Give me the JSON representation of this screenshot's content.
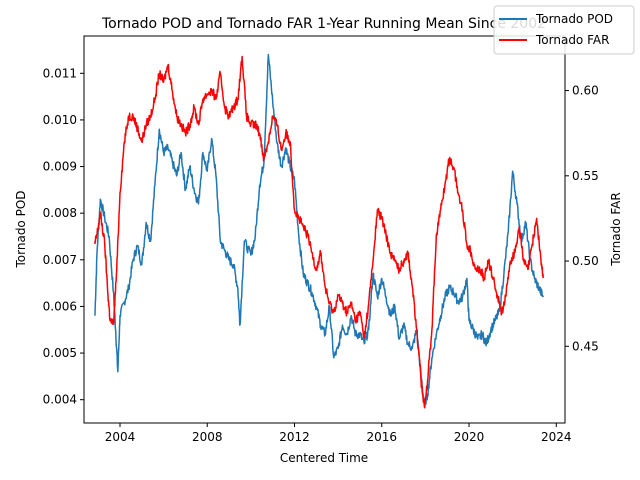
{
  "chart_data": {
    "type": "line",
    "title": "Tornado POD and Tornado FAR 1-Year Running Mean Since 2002",
    "xlabel": "Centered Time",
    "ylabel_left": "Tornado POD",
    "ylabel_right": "Tornado FAR",
    "xlim": [
      2002.35,
      2024.4
    ],
    "ylim_left": [
      0.0035,
      0.0118
    ],
    "ylim_right": [
      0.405,
      0.632
    ],
    "x_ticks": [
      2004,
      2008,
      2012,
      2016,
      2020,
      2024
    ],
    "y_ticks_left": [
      0.004,
      0.005,
      0.006,
      0.007,
      0.008,
      0.009,
      0.01,
      0.011
    ],
    "y_ticks_right": [
      0.45,
      0.5,
      0.55,
      0.6
    ],
    "legend_position": "top-right",
    "grid": false,
    "series": [
      {
        "name": "Tornado POD",
        "axis": "left",
        "color": "#1f77b4",
        "points": [
          [
            2002.85,
            0.0058
          ],
          [
            2002.95,
            0.0072
          ],
          [
            2003.1,
            0.0083
          ],
          [
            2003.3,
            0.0079
          ],
          [
            2003.5,
            0.0075
          ],
          [
            2003.7,
            0.0063
          ],
          [
            2003.8,
            0.0055
          ],
          [
            2003.9,
            0.0046
          ],
          [
            2004.0,
            0.0058
          ],
          [
            2004.2,
            0.0061
          ],
          [
            2004.4,
            0.0064
          ],
          [
            2004.6,
            0.007
          ],
          [
            2004.8,
            0.0073
          ],
          [
            2005.0,
            0.0069
          ],
          [
            2005.2,
            0.0078
          ],
          [
            2005.4,
            0.0074
          ],
          [
            2005.6,
            0.0086
          ],
          [
            2005.8,
            0.0098
          ],
          [
            2006.0,
            0.0093
          ],
          [
            2006.2,
            0.0094
          ],
          [
            2006.4,
            0.0091
          ],
          [
            2006.6,
            0.0088
          ],
          [
            2006.8,
            0.0093
          ],
          [
            2007.0,
            0.0085
          ],
          [
            2007.2,
            0.009
          ],
          [
            2007.4,
            0.0085
          ],
          [
            2007.6,
            0.0082
          ],
          [
            2007.8,
            0.0093
          ],
          [
            2008.0,
            0.0089
          ],
          [
            2008.2,
            0.0096
          ],
          [
            2008.4,
            0.0088
          ],
          [
            2008.6,
            0.0074
          ],
          [
            2008.8,
            0.0072
          ],
          [
            2009.0,
            0.007
          ],
          [
            2009.2,
            0.0069
          ],
          [
            2009.4,
            0.0064
          ],
          [
            2009.5,
            0.0056
          ],
          [
            2009.7,
            0.0074
          ],
          [
            2010.0,
            0.0071
          ],
          [
            2010.2,
            0.0075
          ],
          [
            2010.4,
            0.0086
          ],
          [
            2010.6,
            0.0091
          ],
          [
            2010.8,
            0.0114
          ],
          [
            2011.0,
            0.0104
          ],
          [
            2011.2,
            0.0095
          ],
          [
            2011.4,
            0.009
          ],
          [
            2011.6,
            0.0094
          ],
          [
            2011.8,
            0.009
          ],
          [
            2012.0,
            0.0087
          ],
          [
            2012.2,
            0.0075
          ],
          [
            2012.4,
            0.0067
          ],
          [
            2012.6,
            0.0065
          ],
          [
            2012.8,
            0.0063
          ],
          [
            2013.0,
            0.006
          ],
          [
            2013.2,
            0.0056
          ],
          [
            2013.4,
            0.0054
          ],
          [
            2013.6,
            0.006
          ],
          [
            2013.8,
            0.0049
          ],
          [
            2014.0,
            0.0051
          ],
          [
            2014.2,
            0.0056
          ],
          [
            2014.4,
            0.0054
          ],
          [
            2014.6,
            0.0058
          ],
          [
            2014.8,
            0.0054
          ],
          [
            2015.0,
            0.0054
          ],
          [
            2015.2,
            0.0052
          ],
          [
            2015.4,
            0.0055
          ],
          [
            2015.6,
            0.0067
          ],
          [
            2015.8,
            0.0062
          ],
          [
            2016.0,
            0.0066
          ],
          [
            2016.2,
            0.0062
          ],
          [
            2016.4,
            0.0058
          ],
          [
            2016.6,
            0.006
          ],
          [
            2016.8,
            0.0053
          ],
          [
            2017.0,
            0.0056
          ],
          [
            2017.2,
            0.0052
          ],
          [
            2017.4,
            0.0051
          ],
          [
            2017.6,
            0.0055
          ],
          [
            2017.8,
            0.0045
          ],
          [
            2017.95,
            0.0039
          ],
          [
            2018.1,
            0.0041
          ],
          [
            2018.3,
            0.0049
          ],
          [
            2018.5,
            0.0054
          ],
          [
            2018.7,
            0.0058
          ],
          [
            2018.9,
            0.0062
          ],
          [
            2019.1,
            0.0064
          ],
          [
            2019.3,
            0.0063
          ],
          [
            2019.5,
            0.0061
          ],
          [
            2019.7,
            0.0062
          ],
          [
            2019.9,
            0.0066
          ],
          [
            2020.0,
            0.0057
          ],
          [
            2020.2,
            0.0055
          ],
          [
            2020.4,
            0.0053
          ],
          [
            2020.6,
            0.0054
          ],
          [
            2020.8,
            0.0052
          ],
          [
            2021.0,
            0.0055
          ],
          [
            2021.2,
            0.0057
          ],
          [
            2021.4,
            0.0059
          ],
          [
            2021.6,
            0.0067
          ],
          [
            2021.8,
            0.0076
          ],
          [
            2022.0,
            0.0089
          ],
          [
            2022.2,
            0.0082
          ],
          [
            2022.4,
            0.0074
          ],
          [
            2022.6,
            0.0078
          ],
          [
            2022.8,
            0.007
          ],
          [
            2023.0,
            0.0066
          ],
          [
            2023.2,
            0.0064
          ],
          [
            2023.4,
            0.0062
          ]
        ]
      },
      {
        "name": "Tornado FAR",
        "axis": "right",
        "color": "#ff0000",
        "points": [
          [
            2002.85,
            0.51
          ],
          [
            2002.95,
            0.516
          ],
          [
            2003.1,
            0.528
          ],
          [
            2003.3,
            0.51
          ],
          [
            2003.45,
            0.48
          ],
          [
            2003.55,
            0.465
          ],
          [
            2003.7,
            0.463
          ],
          [
            2003.85,
            0.495
          ],
          [
            2004.0,
            0.54
          ],
          [
            2004.2,
            0.57
          ],
          [
            2004.4,
            0.585
          ],
          [
            2004.6,
            0.585
          ],
          [
            2004.8,
            0.578
          ],
          [
            2005.0,
            0.57
          ],
          [
            2005.2,
            0.58
          ],
          [
            2005.4,
            0.585
          ],
          [
            2005.6,
            0.595
          ],
          [
            2005.8,
            0.61
          ],
          [
            2006.0,
            0.605
          ],
          [
            2006.2,
            0.615
          ],
          [
            2006.4,
            0.6
          ],
          [
            2006.6,
            0.585
          ],
          [
            2006.8,
            0.58
          ],
          [
            2007.0,
            0.575
          ],
          [
            2007.2,
            0.58
          ],
          [
            2007.4,
            0.59
          ],
          [
            2007.6,
            0.58
          ],
          [
            2007.8,
            0.595
          ],
          [
            2008.0,
            0.598
          ],
          [
            2008.2,
            0.6
          ],
          [
            2008.4,
            0.595
          ],
          [
            2008.6,
            0.61
          ],
          [
            2008.8,
            0.59
          ],
          [
            2009.0,
            0.585
          ],
          [
            2009.2,
            0.59
          ],
          [
            2009.4,
            0.595
          ],
          [
            2009.6,
            0.62
          ],
          [
            2009.8,
            0.585
          ],
          [
            2010.0,
            0.58
          ],
          [
            2010.2,
            0.58
          ],
          [
            2010.4,
            0.575
          ],
          [
            2010.6,
            0.56
          ],
          [
            2010.8,
            0.57
          ],
          [
            2011.0,
            0.585
          ],
          [
            2011.2,
            0.58
          ],
          [
            2011.4,
            0.565
          ],
          [
            2011.6,
            0.575
          ],
          [
            2011.8,
            0.57
          ],
          [
            2012.0,
            0.53
          ],
          [
            2012.2,
            0.525
          ],
          [
            2012.4,
            0.52
          ],
          [
            2012.6,
            0.515
          ],
          [
            2012.8,
            0.505
          ],
          [
            2013.0,
            0.495
          ],
          [
            2013.2,
            0.505
          ],
          [
            2013.4,
            0.485
          ],
          [
            2013.6,
            0.475
          ],
          [
            2013.8,
            0.47
          ],
          [
            2014.0,
            0.48
          ],
          [
            2014.2,
            0.475
          ],
          [
            2014.4,
            0.47
          ],
          [
            2014.6,
            0.475
          ],
          [
            2014.8,
            0.465
          ],
          [
            2015.0,
            0.47
          ],
          [
            2015.2,
            0.455
          ],
          [
            2015.4,
            0.475
          ],
          [
            2015.6,
            0.5
          ],
          [
            2015.8,
            0.53
          ],
          [
            2016.0,
            0.525
          ],
          [
            2016.2,
            0.515
          ],
          [
            2016.4,
            0.505
          ],
          [
            2016.6,
            0.5
          ],
          [
            2016.8,
            0.495
          ],
          [
            2017.0,
            0.5
          ],
          [
            2017.2,
            0.505
          ],
          [
            2017.4,
            0.485
          ],
          [
            2017.6,
            0.46
          ],
          [
            2017.8,
            0.43
          ],
          [
            2017.95,
            0.415
          ],
          [
            2018.1,
            0.43
          ],
          [
            2018.3,
            0.46
          ],
          [
            2018.5,
            0.515
          ],
          [
            2018.7,
            0.53
          ],
          [
            2018.9,
            0.545
          ],
          [
            2019.1,
            0.56
          ],
          [
            2019.3,
            0.555
          ],
          [
            2019.5,
            0.54
          ],
          [
            2019.7,
            0.53
          ],
          [
            2019.9,
            0.51
          ],
          [
            2020.1,
            0.505
          ],
          [
            2020.3,
            0.495
          ],
          [
            2020.5,
            0.495
          ],
          [
            2020.7,
            0.49
          ],
          [
            2020.9,
            0.5
          ],
          [
            2021.1,
            0.49
          ],
          [
            2021.3,
            0.48
          ],
          [
            2021.5,
            0.47
          ],
          [
            2021.7,
            0.48
          ],
          [
            2021.9,
            0.5
          ],
          [
            2022.1,
            0.505
          ],
          [
            2022.3,
            0.52
          ],
          [
            2022.5,
            0.5
          ],
          [
            2022.7,
            0.495
          ],
          [
            2022.9,
            0.51
          ],
          [
            2023.1,
            0.525
          ],
          [
            2023.3,
            0.5
          ],
          [
            2023.4,
            0.49
          ]
        ]
      }
    ]
  }
}
